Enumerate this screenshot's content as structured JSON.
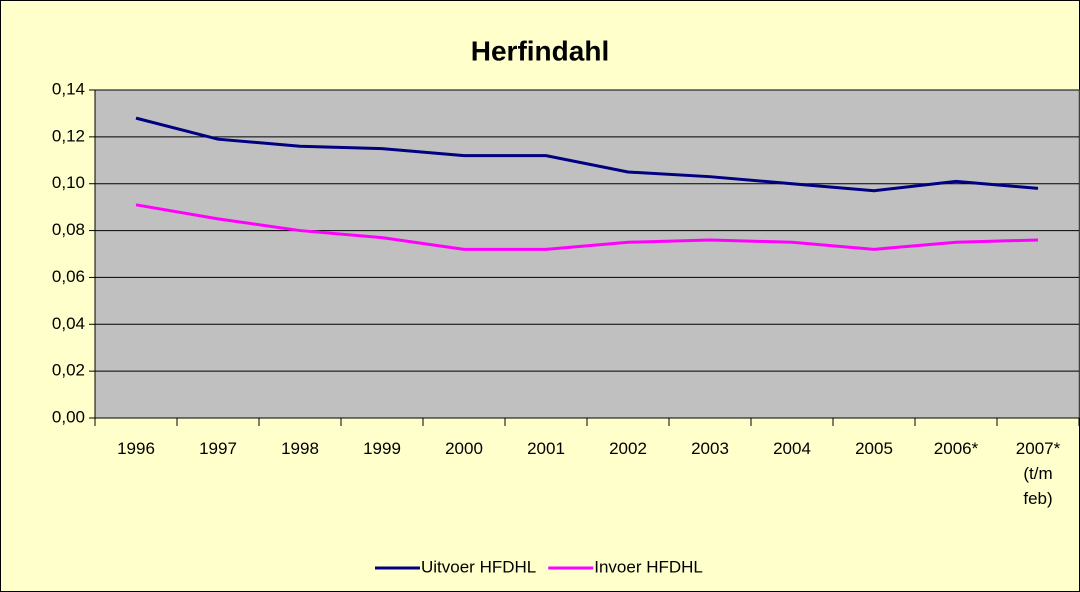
{
  "chart_data": {
    "type": "line",
    "title": "Herfindahl",
    "categories": [
      "1996",
      "1997",
      "1998",
      "1999",
      "2000",
      "2001",
      "2002",
      "2003",
      "2004",
      "2005",
      "2006*",
      "2007* (t/m feb)"
    ],
    "series": [
      {
        "name": "Uitvoer HFDHL",
        "color": "#000080",
        "values": [
          0.128,
          0.119,
          0.116,
          0.115,
          0.112,
          0.112,
          0.105,
          0.103,
          0.1,
          0.097,
          0.101,
          0.098
        ]
      },
      {
        "name": "Invoer HFDHL",
        "color": "#FF00FF",
        "values": [
          0.091,
          0.085,
          0.08,
          0.077,
          0.072,
          0.072,
          0.075,
          0.076,
          0.075,
          0.072,
          0.075,
          0.076
        ]
      }
    ],
    "ylim": [
      0,
      0.14
    ],
    "yticks": [
      {
        "value": 0,
        "label": "0,00"
      },
      {
        "value": 0.02,
        "label": "0,02"
      },
      {
        "value": 0.04,
        "label": "0,04"
      },
      {
        "value": 0.06,
        "label": "0,06"
      },
      {
        "value": 0.08,
        "label": "0,08"
      },
      {
        "value": 0.1,
        "label": "0,10"
      },
      {
        "value": 0.12,
        "label": "0,12"
      },
      {
        "value": 0.14,
        "label": "0,14"
      }
    ],
    "grid": true,
    "legend": "bottom"
  }
}
